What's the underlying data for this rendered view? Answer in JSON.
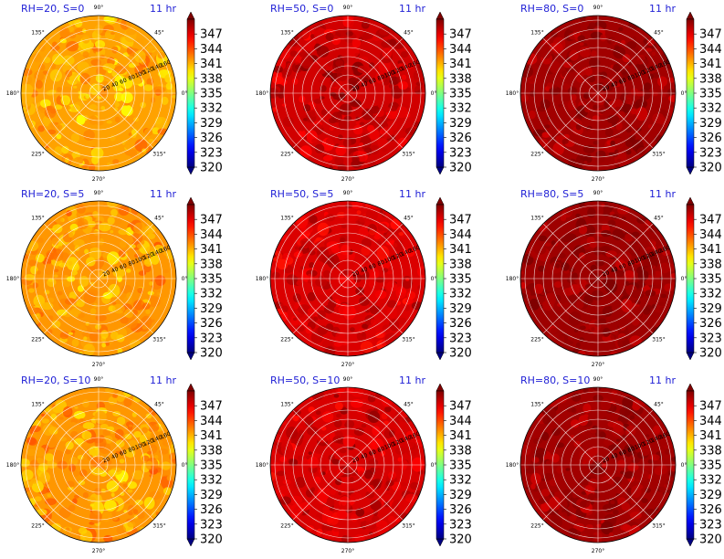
{
  "colorbar": {
    "min": 320,
    "max": 350,
    "ticks": [
      320,
      323,
      326,
      329,
      332,
      335,
      338,
      341,
      344,
      347
    ],
    "colormap": "jet",
    "extend": "both"
  },
  "polar_axes": {
    "angle_ticks": [
      "0°",
      "45°",
      "90°",
      "135°",
      "180°",
      "225°",
      "270°",
      "315°"
    ],
    "radial_ticks": [
      20,
      40,
      60,
      80,
      100,
      120,
      140,
      160
    ],
    "radial_max": 170,
    "grid": true
  },
  "chart_data": [
    {
      "type": "heatmap",
      "panel": "RH20-S0",
      "title": "RH=20, S=0",
      "time_label": "11 hr",
      "base_value": 341.5,
      "spread": 2.2,
      "center_value": 339.5
    },
    {
      "type": "heatmap",
      "panel": "RH50-S0",
      "title": "RH=50, S=0",
      "time_label": "11 hr",
      "base_value": 347.6,
      "spread": 1.8,
      "center_value": 349.5
    },
    {
      "type": "heatmap",
      "panel": "RH80-S0",
      "title": "RH=80, S=0",
      "time_label": "11 hr",
      "base_value": 349.0,
      "spread": 1.6,
      "center_value": 349.6
    },
    {
      "type": "heatmap",
      "panel": "RH20-S5",
      "title": "RH=20, S=5",
      "time_label": "11 hr",
      "base_value": 341.8,
      "spread": 2.2,
      "center_value": 340.0
    },
    {
      "type": "heatmap",
      "panel": "RH50-S5",
      "title": "RH=50, S=5",
      "time_label": "11 hr",
      "base_value": 347.3,
      "spread": 1.8,
      "center_value": 348.2
    },
    {
      "type": "heatmap",
      "panel": "RH80-S5",
      "title": "RH=80, S=5",
      "time_label": "11 hr",
      "base_value": 349.1,
      "spread": 1.5,
      "center_value": 349.6
    },
    {
      "type": "heatmap",
      "panel": "RH20-S10",
      "title": "RH=20, S=10",
      "time_label": "11 hr",
      "base_value": 341.8,
      "spread": 2.2,
      "center_value": 340.5
    },
    {
      "type": "heatmap",
      "panel": "RH50-S10",
      "title": "RH=50, S=10",
      "time_label": "11 hr",
      "base_value": 347.4,
      "spread": 1.8,
      "center_value": 348.5
    },
    {
      "type": "heatmap",
      "panel": "RH80-S10",
      "title": "RH=80, S=10",
      "time_label": "11 hr",
      "base_value": 349.0,
      "spread": 1.6,
      "center_value": 349.5
    }
  ]
}
